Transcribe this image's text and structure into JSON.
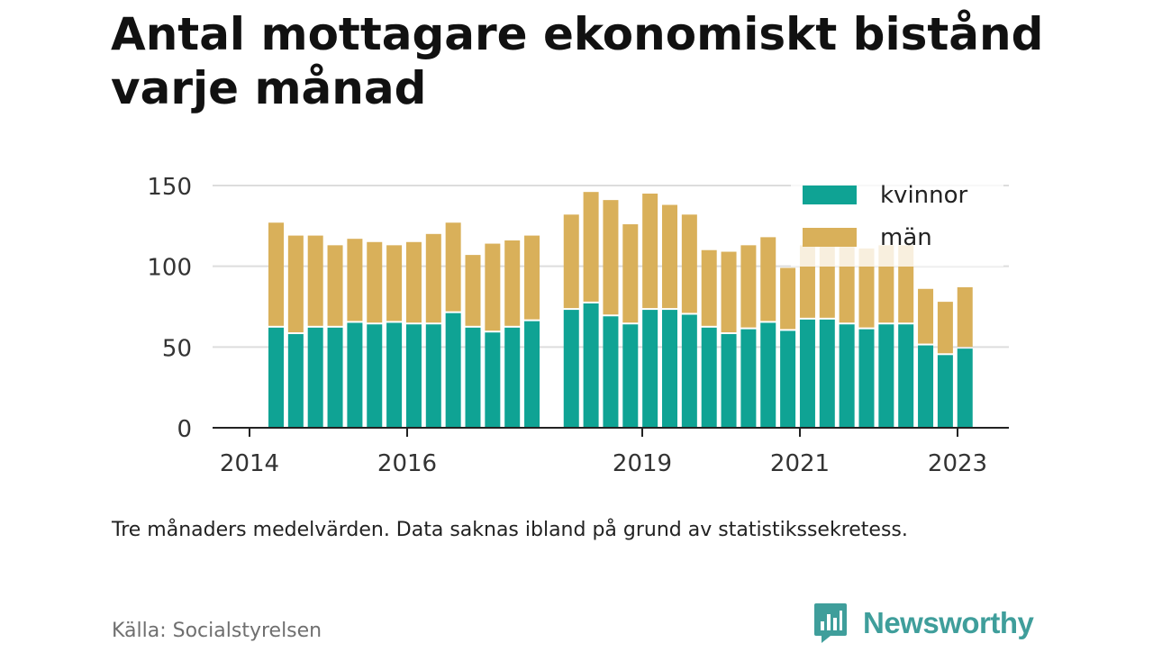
{
  "title": "Antal mottagare ekonomiskt bistånd varje månad",
  "note": "Tre månaders medelvärden. Data saknas ibland på grund av statistikssekretess.",
  "source": "Källa: Socialstyrelsen",
  "brand": {
    "name": "Newsworthy",
    "color": "#3f9e9b",
    "icon": "newsworthy-logo-icon"
  },
  "chart_data": {
    "type": "bar",
    "stacked": true,
    "x_ticks": [
      "2014",
      "2016",
      "2019",
      "2021",
      "2023"
    ],
    "y_ticks": [
      "0",
      "50",
      "100",
      "150"
    ],
    "ylim": [
      0,
      150
    ],
    "grid": true,
    "legend": {
      "position": "top-right"
    },
    "x": [
      "2014-Q2",
      "2014-Q3",
      "2014-Q4",
      "2015-Q1",
      "2015-Q2",
      "2015-Q3",
      "2015-Q4",
      "2016-Q1",
      "2016-Q2",
      "2016-Q3",
      "2016-Q4",
      "2017-Q1",
      "2017-Q2",
      "2017-Q3",
      "2017-Q4",
      "2018-Q1",
      "2018-Q2",
      "2018-Q3",
      "2018-Q4",
      "2019-Q1",
      "2019-Q2",
      "2019-Q3",
      "2019-Q4",
      "2020-Q1",
      "2020-Q2",
      "2020-Q3",
      "2020-Q4",
      "2021-Q1",
      "2021-Q2",
      "2021-Q3",
      "2021-Q4",
      "2022-Q1",
      "2022-Q2",
      "2022-Q3",
      "2022-Q4",
      "2023-Q1"
    ],
    "series": [
      {
        "name": "kvinnor",
        "color": "#0fa394",
        "values": [
          62,
          58,
          62,
          62,
          65,
          64,
          65,
          64,
          64,
          71,
          62,
          59,
          62,
          66,
          null,
          73,
          77,
          69,
          64,
          73,
          73,
          70,
          62,
          58,
          61,
          65,
          60,
          67,
          67,
          64,
          61,
          64,
          64,
          51,
          45,
          49
        ]
      },
      {
        "name": "män",
        "color": "#d9b05a",
        "values": [
          65,
          61,
          57,
          51,
          52,
          51,
          48,
          51,
          56,
          56,
          45,
          55,
          54,
          53,
          null,
          59,
          69,
          72,
          62,
          72,
          65,
          62,
          48,
          51,
          52,
          53,
          39,
          46,
          46,
          48,
          50,
          49,
          49,
          35,
          33,
          38
        ]
      }
    ]
  }
}
